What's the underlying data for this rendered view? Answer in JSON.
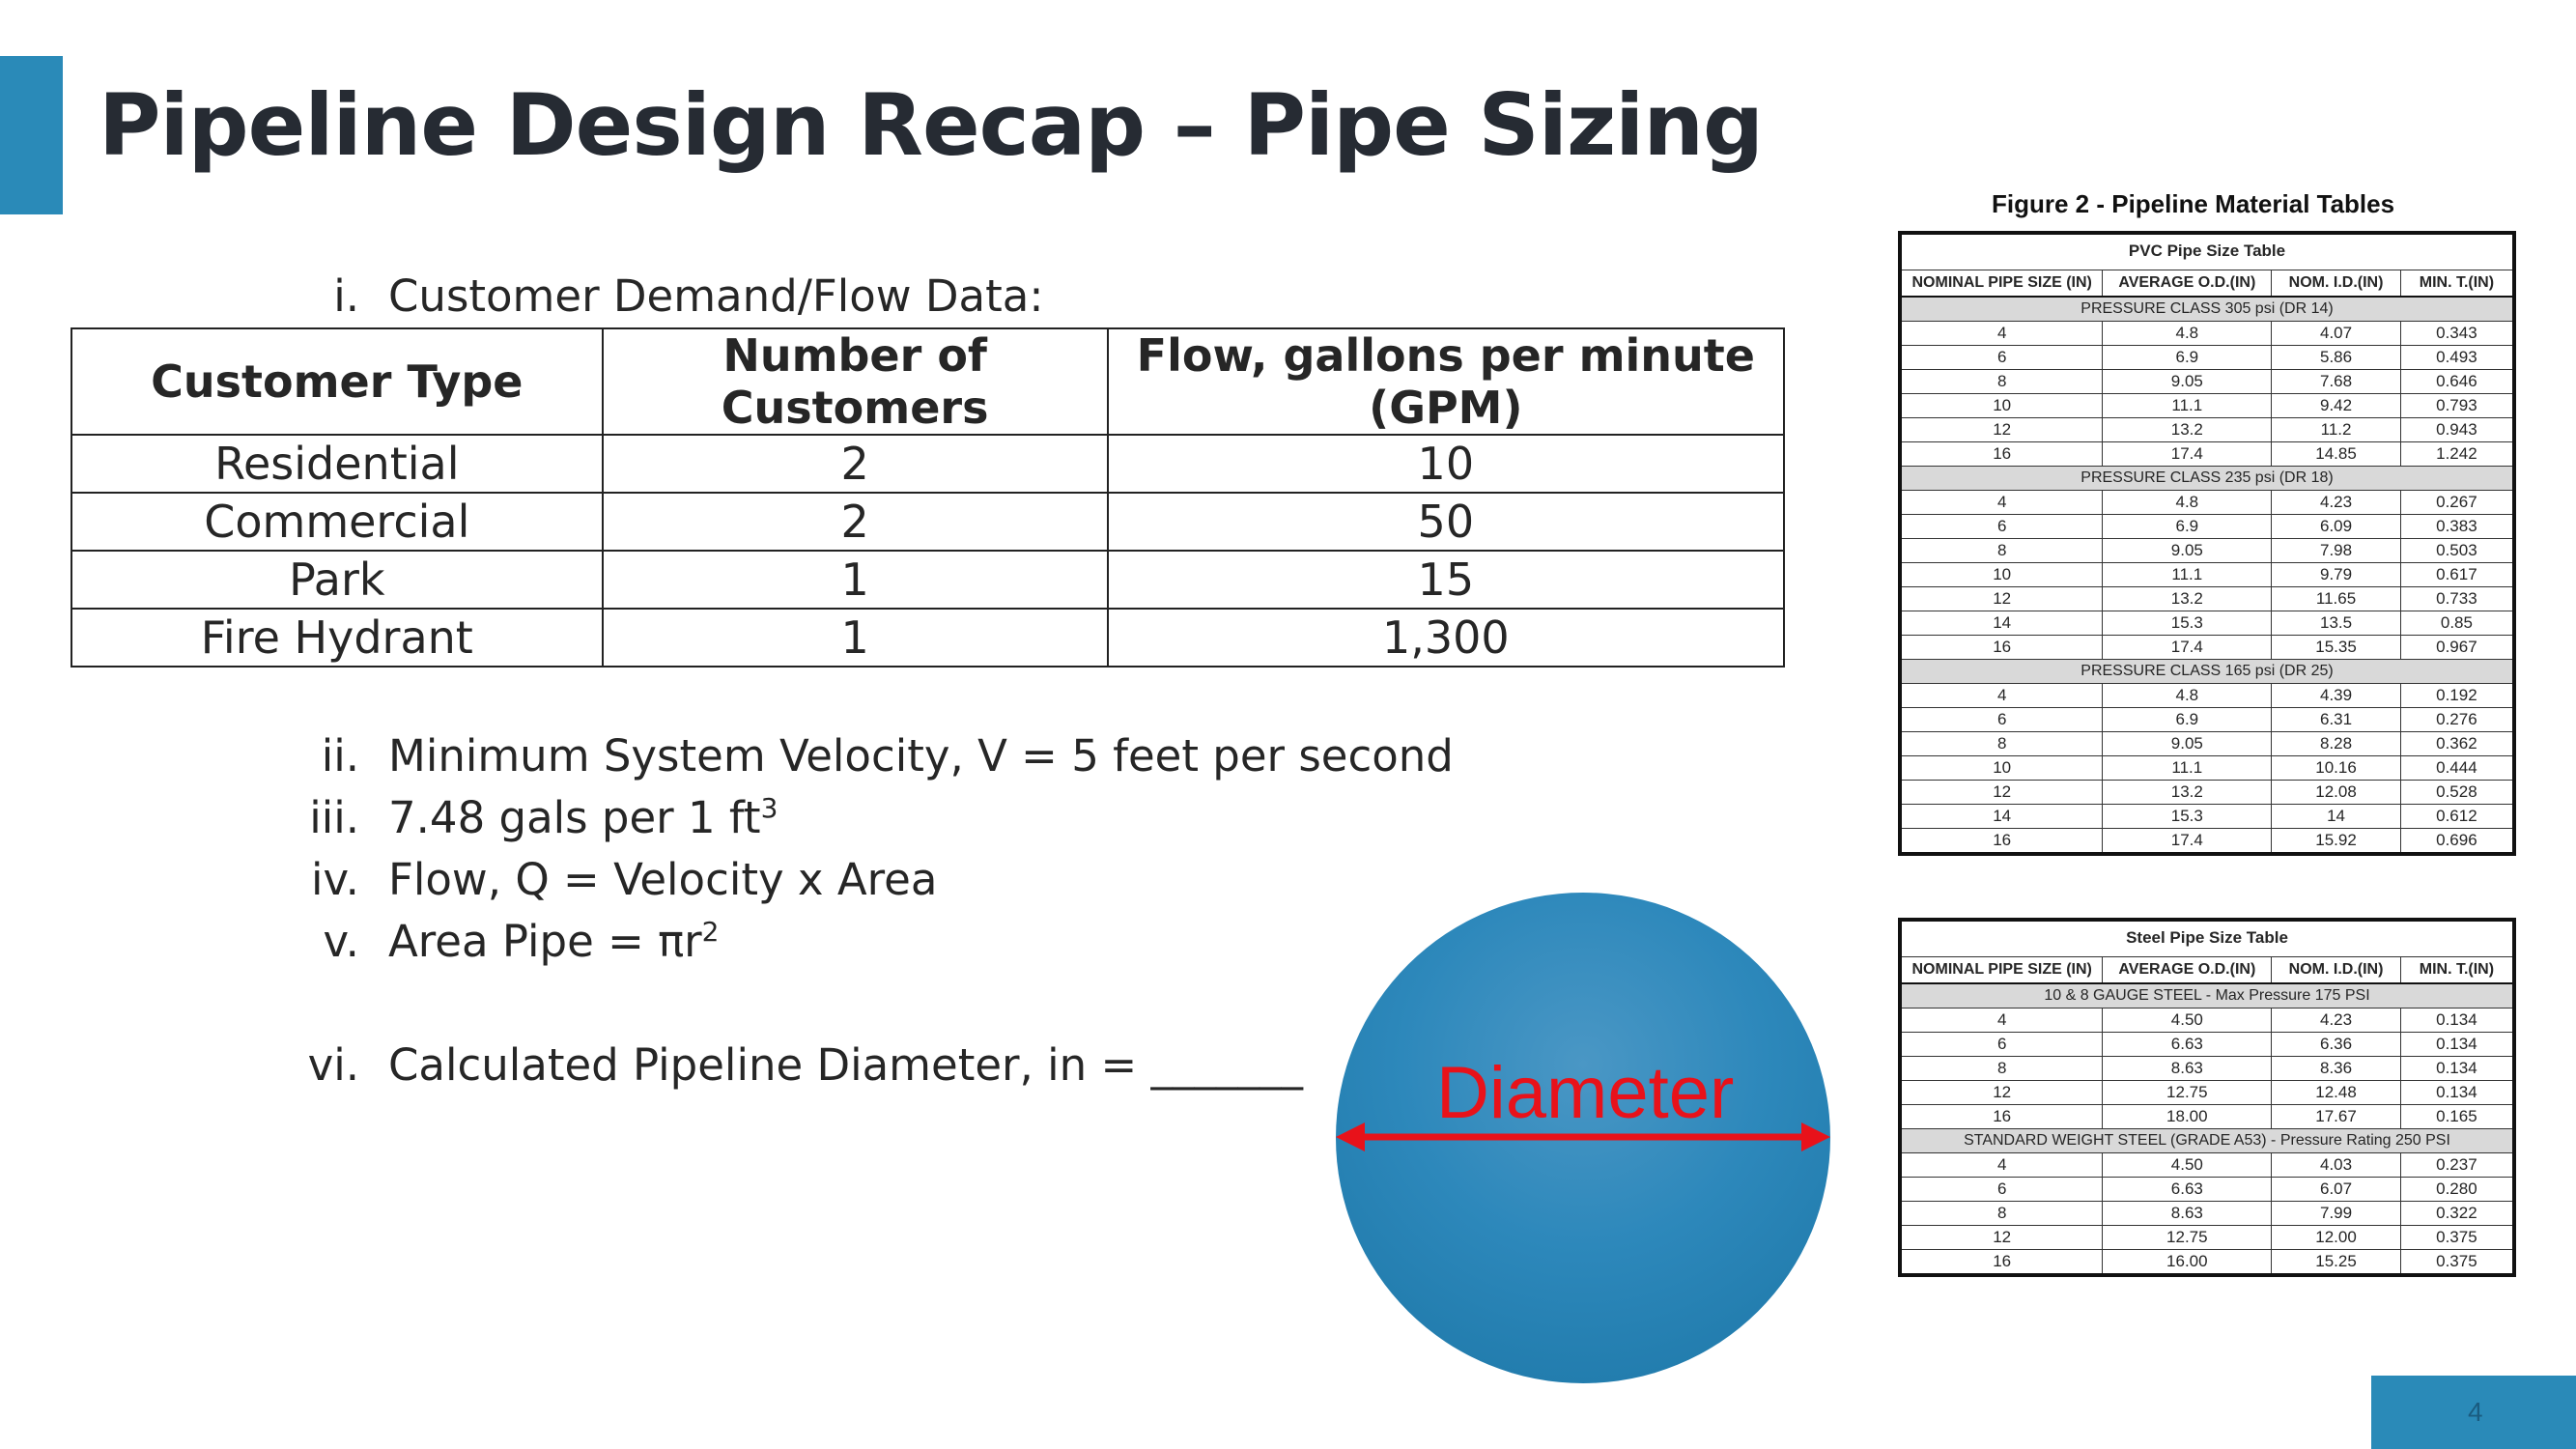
{
  "title": "Pipeline Design Recap – Pipe Sizing",
  "items": [
    {
      "num": "i.",
      "text": "Customer Demand/Flow Data:"
    },
    {
      "num": "ii.",
      "text": "Minimum System Velocity, V = 5 feet per second"
    },
    {
      "num": "iii.",
      "text": "7.48 gals per 1 ft",
      "sup": "3"
    },
    {
      "num": "iv.",
      "text": "Flow, Q = Velocity x Area"
    },
    {
      "num": "v.",
      "text": "Area Pipe = πr",
      "sup": "2"
    },
    {
      "num": "vi.",
      "text": "Calculated Pipeline Diameter, in = _______"
    }
  ],
  "demand_table": {
    "headers": [
      "Customer Type",
      "Number of Customers",
      "Flow, gallons per minute (GPM)"
    ],
    "rows": [
      [
        "Residential",
        "2",
        "10"
      ],
      [
        "Commercial",
        "2",
        "50"
      ],
      [
        "Park",
        "1",
        "15"
      ],
      [
        "Fire Hydrant",
        "1",
        "1,300"
      ]
    ]
  },
  "diagram": {
    "label": "Diameter",
    "circle_color": "#2a8ab8",
    "label_color": "#e8121a"
  },
  "figure_title": "Figure 2 - Pipeline Material Tables",
  "pvc_table": {
    "caption": "PVC Pipe Size Table",
    "headers": [
      "NOMINAL PIPE SIZE (IN)",
      "AVERAGE O.D.(IN)",
      "NOM. I.D.(IN)",
      "MIN. T.(IN)"
    ],
    "groups": [
      {
        "name": "PRESSURE CLASS 305 psi (DR 14)",
        "rows": [
          [
            "4",
            "4.8",
            "4.07",
            "0.343"
          ],
          [
            "6",
            "6.9",
            "5.86",
            "0.493"
          ],
          [
            "8",
            "9.05",
            "7.68",
            "0.646"
          ],
          [
            "10",
            "11.1",
            "9.42",
            "0.793"
          ],
          [
            "12",
            "13.2",
            "11.2",
            "0.943"
          ],
          [
            "16",
            "17.4",
            "14.85",
            "1.242"
          ]
        ]
      },
      {
        "name": "PRESSURE CLASS 235 psi (DR 18)",
        "rows": [
          [
            "4",
            "4.8",
            "4.23",
            "0.267"
          ],
          [
            "6",
            "6.9",
            "6.09",
            "0.383"
          ],
          [
            "8",
            "9.05",
            "7.98",
            "0.503"
          ],
          [
            "10",
            "11.1",
            "9.79",
            "0.617"
          ],
          [
            "12",
            "13.2",
            "11.65",
            "0.733"
          ],
          [
            "14",
            "15.3",
            "13.5",
            "0.85"
          ],
          [
            "16",
            "17.4",
            "15.35",
            "0.967"
          ]
        ]
      },
      {
        "name": "PRESSURE CLASS 165 psi (DR 25)",
        "rows": [
          [
            "4",
            "4.8",
            "4.39",
            "0.192"
          ],
          [
            "6",
            "6.9",
            "6.31",
            "0.276"
          ],
          [
            "8",
            "9.05",
            "8.28",
            "0.362"
          ],
          [
            "10",
            "11.1",
            "10.16",
            "0.444"
          ],
          [
            "12",
            "13.2",
            "12.08",
            "0.528"
          ],
          [
            "14",
            "15.3",
            "14",
            "0.612"
          ],
          [
            "16",
            "17.4",
            "15.92",
            "0.696"
          ]
        ]
      }
    ]
  },
  "steel_table": {
    "caption": "Steel Pipe Size Table",
    "headers": [
      "NOMINAL PIPE SIZE (IN)",
      "AVERAGE O.D.(IN)",
      "NOM. I.D.(IN)",
      "MIN. T.(IN)"
    ],
    "groups": [
      {
        "name": "10 & 8 GAUGE STEEL - Max Pressure 175 PSI",
        "rows": [
          [
            "4",
            "4.50",
            "4.23",
            "0.134"
          ],
          [
            "6",
            "6.63",
            "6.36",
            "0.134"
          ],
          [
            "8",
            "8.63",
            "8.36",
            "0.134"
          ],
          [
            "12",
            "12.75",
            "12.48",
            "0.134"
          ],
          [
            "16",
            "18.00",
            "17.67",
            "0.165"
          ]
        ]
      },
      {
        "name": "STANDARD WEIGHT STEEL (GRADE A53) - Pressure Rating 250 PSI",
        "rows": [
          [
            "4",
            "4.50",
            "4.03",
            "0.237"
          ],
          [
            "6",
            "6.63",
            "6.07",
            "0.280"
          ],
          [
            "8",
            "8.63",
            "7.99",
            "0.322"
          ],
          [
            "12",
            "12.75",
            "12.00",
            "0.375"
          ],
          [
            "16",
            "16.00",
            "15.25",
            "0.375"
          ]
        ]
      }
    ]
  },
  "page_number": "4"
}
